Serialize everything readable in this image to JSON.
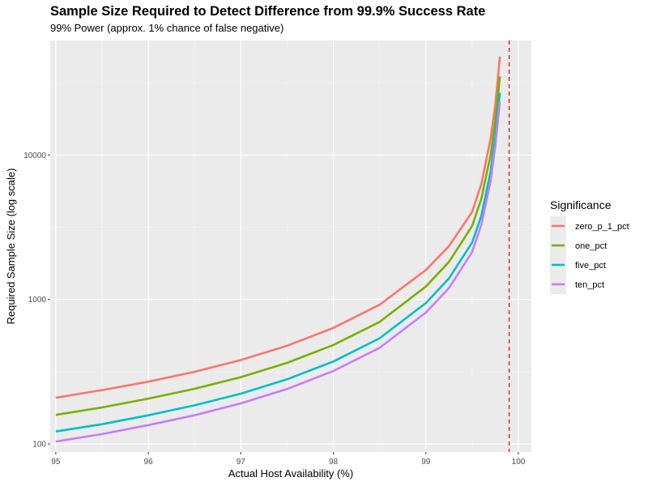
{
  "chart_data": {
    "type": "line",
    "title": "Sample Size Required to Detect Difference from 99.9% Success Rate",
    "subtitle": "99% Power (approx. 1% chance of false negative)",
    "xlabel": "Actual Host Availability (%)",
    "ylabel": "Required Sample Size (log scale)",
    "x_scale": "linear",
    "y_scale": "log10",
    "xlim": [
      94.94,
      100.14
    ],
    "ylim": [
      88,
      62000
    ],
    "x_ticks": [
      95,
      96,
      97,
      98,
      99,
      100
    ],
    "x_tick_labels": [
      "95",
      "96",
      "97",
      "98",
      "99",
      "100"
    ],
    "y_ticks": [
      100,
      1000,
      10000
    ],
    "y_tick_labels": [
      "100",
      "1000",
      "10000"
    ],
    "grid": true,
    "reference_line": {
      "x": 99.9,
      "style": "dashed",
      "color": "#e41a1c"
    },
    "legend": {
      "title": "Significance",
      "position": "right"
    },
    "series": [
      {
        "name": "zero_p_1_pct",
        "color": "#F8766D",
        "x": [
          95,
          95.5,
          96,
          96.5,
          97,
          97.5,
          98,
          98.5,
          99,
          99.25,
          99.5,
          99.6,
          99.7,
          99.75,
          99.8
        ],
        "values": [
          209,
          236,
          270,
          316,
          381,
          478,
          635,
          920,
          1600,
          2340,
          4040,
          6300,
          13000,
          22000,
          48000
        ]
      },
      {
        "name": "one_pct",
        "color": "#7CAE00",
        "x": [
          95,
          95.5,
          96,
          96.5,
          97,
          97.5,
          98,
          98.5,
          99,
          99.25,
          99.5,
          99.6,
          99.7,
          99.75,
          99.8
        ],
        "values": [
          159,
          179,
          206,
          241,
          290,
          364,
          484,
          700,
          1230,
          1820,
          3230,
          5000,
          10000,
          17200,
          35000
        ]
      },
      {
        "name": "five_pct",
        "color": "#00BFC4",
        "x": [
          95,
          95.5,
          96,
          96.5,
          97,
          97.5,
          98,
          98.5,
          99,
          99.25,
          99.5,
          99.6,
          99.7,
          99.75,
          99.8
        ],
        "values": [
          122,
          137,
          158,
          185,
          223,
          280,
          372,
          539,
          945,
          1400,
          2480,
          3800,
          7700,
          13400,
          27000
        ]
      },
      {
        "name": "ten_pct",
        "color": "#C77CFF",
        "x": [
          95,
          95.5,
          96,
          96.5,
          97,
          97.5,
          98,
          98.5,
          99,
          99.25,
          99.5,
          99.6,
          99.7,
          99.75,
          99.8
        ],
        "values": [
          104,
          117,
          135,
          158,
          191,
          240,
          320,
          463,
          813,
          1200,
          2130,
          3300,
          6600,
          11500,
          23500
        ]
      }
    ]
  }
}
